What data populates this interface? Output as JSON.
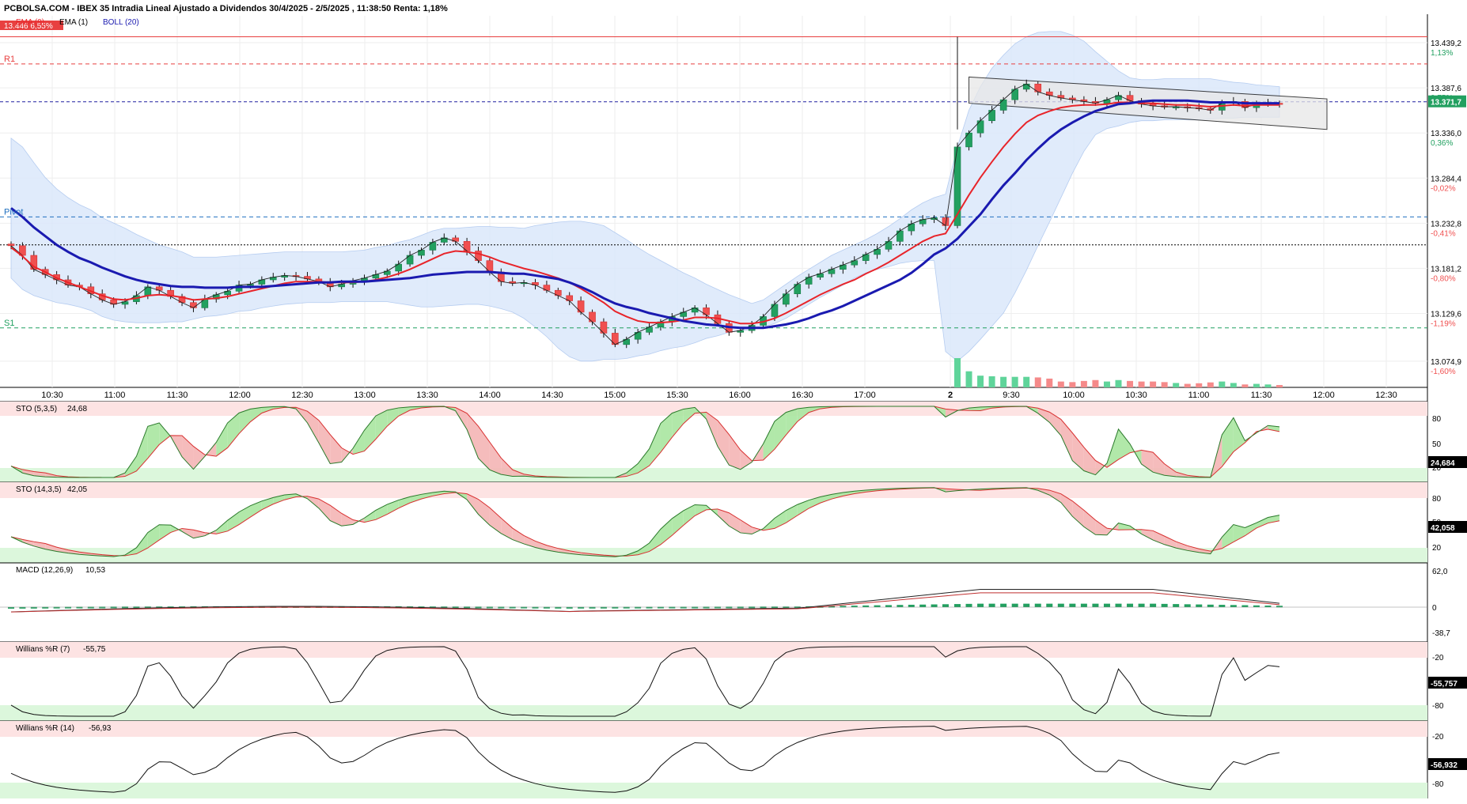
{
  "header": {
    "title": "PCBOLSA.COM - IBEX 35 Intradia Lineal Ajustado a Dividendos 30/4/2025 - 2/5/2025 , 11:38:50 Renta: 1,18%",
    "high_badge": "13.446  6,55%",
    "legend": [
      {
        "label": "EMA (9)",
        "color": "#e8242a"
      },
      {
        "label": "EMA (1)",
        "color": "#000000"
      },
      {
        "label": "BOLL (20)",
        "color": "#1a1ab0"
      }
    ]
  },
  "colors": {
    "up": "#22a060",
    "down": "#f05050",
    "ema9": "#e8242a",
    "ema20": "#1a1ab0",
    "boll": "#dbe8fb",
    "resistance": "#e84040",
    "pivot": "#2070c0",
    "support": "#20a060",
    "overbought": "#fde3e3",
    "oversold": "#dcf7dc"
  },
  "chart_data": [
    {
      "type": "candlestick",
      "title": "IBEX 35 Intradia",
      "x_ticks": [
        "10:30",
        "11:00",
        "11:30",
        "12:00",
        "12:30",
        "13:00",
        "13:30",
        "14:00",
        "14:30",
        "15:00",
        "15:30",
        "16:00",
        "16:30",
        "17:00",
        "2",
        "9:30",
        "10:00",
        "10:30",
        "11:00",
        "11:30",
        "12:00",
        "12:30"
      ],
      "ylim": [
        13045,
        13470
      ],
      "y_ticks": [
        {
          "value": 13439.2,
          "label": "13.439,2",
          "pct": "1,13%"
        },
        {
          "value": 13387.6,
          "label": "13.387,6",
          "pct": "0,75%"
        },
        {
          "value": 13336.0,
          "label": "13.336,0",
          "pct": "0,36%"
        },
        {
          "value": 13284.4,
          "label": "13.284,4",
          "pct": "-0,02%"
        },
        {
          "value": 13232.8,
          "label": "13.232,8",
          "pct": "-0,41%"
        },
        {
          "value": 13181.2,
          "label": "13.181,2",
          "pct": "-0,80%"
        },
        {
          "value": 13129.6,
          "label": "13.129,6",
          "pct": "-1,19%"
        },
        {
          "value": 13074.9,
          "label": "13.074,9",
          "pct": "-1,60%"
        }
      ],
      "last_price": {
        "value": 13371.7,
        "label": "13.371,7"
      },
      "levels": [
        {
          "name": "R1",
          "value": 13415
        },
        {
          "name": "Pivot",
          "value": 13240
        },
        {
          "name": "S1",
          "value": 13113
        },
        {
          "name": "prev_close",
          "value": 13208
        }
      ],
      "high_line": 13446,
      "closes": [
        13207,
        13196,
        13180,
        13174,
        13168,
        13162,
        13160,
        13152,
        13145,
        13140,
        13143,
        13150,
        13160,
        13156,
        13149,
        13142,
        13136,
        13146,
        13151,
        13155,
        13162,
        13163,
        13168,
        13171,
        13173,
        13172,
        13169,
        13166,
        13160,
        13163,
        13167,
        13170,
        13174,
        13178,
        13186,
        13196,
        13202,
        13211,
        13216,
        13212,
        13201,
        13190,
        13177,
        13166,
        13164,
        13165,
        13162,
        13156,
        13150,
        13144,
        13131,
        13120,
        13107,
        13094,
        13100,
        13108,
        13114,
        13120,
        13126,
        13131,
        13136,
        13128,
        13118,
        13108,
        13110,
        13116,
        13126,
        13140,
        13152,
        13163,
        13171,
        13175,
        13180,
        13185,
        13190,
        13197,
        13203,
        13212,
        13224,
        13232,
        13237,
        13239,
        13230,
        13320,
        13336,
        13350,
        13362,
        13374,
        13386,
        13392,
        13383,
        13379,
        13376,
        13374,
        13372,
        13370,
        13374,
        13379,
        13373,
        13369,
        13367,
        13366,
        13366,
        13365,
        13364,
        13362,
        13370,
        13372,
        13365,
        13369,
        13370,
        13369
      ],
      "ema9": [
        13205,
        13195,
        13183,
        13177,
        13170,
        13165,
        13160,
        13155,
        13150,
        13146,
        13145,
        13147,
        13150,
        13151,
        13150,
        13148,
        13145,
        13146,
        13147,
        13149,
        13152,
        13155,
        13158,
        13161,
        13164,
        13166,
        13166,
        13166,
        13165,
        13165,
        13165,
        13166,
        13168,
        13171,
        13175,
        13180,
        13186,
        13192,
        13198,
        13201,
        13200,
        13198,
        13194,
        13189,
        13185,
        13181,
        13178,
        13174,
        13170,
        13165,
        13158,
        13150,
        13142,
        13132,
        13126,
        13121,
        13119,
        13119,
        13120,
        13122,
        13125,
        13125,
        13124,
        13121,
        13118,
        13118,
        13120,
        13124,
        13130,
        13137,
        13144,
        13151,
        13157,
        13163,
        13168,
        13175,
        13181,
        13188,
        13196,
        13204,
        13212,
        13218,
        13221,
        13243,
        13265,
        13285,
        13303,
        13320,
        13335,
        13348,
        13356,
        13361,
        13365,
        13367,
        13368,
        13368,
        13369,
        13371,
        13371,
        13370,
        13370,
        13369,
        13368,
        13368,
        13367,
        13366,
        13367,
        13368,
        13367,
        13368,
        13368,
        13368
      ],
      "ema20": [
        13250,
        13240,
        13228,
        13218,
        13208,
        13200,
        13193,
        13188,
        13182,
        13177,
        13172,
        13168,
        13165,
        13163,
        13161,
        13160,
        13160,
        13159,
        13159,
        13159,
        13160,
        13160,
        13160,
        13161,
        13162,
        13163,
        13164,
        13165,
        13165,
        13166,
        13166,
        13166,
        13167,
        13168,
        13169,
        13170,
        13172,
        13174,
        13175,
        13176,
        13177,
        13177,
        13177,
        13176,
        13175,
        13175,
        13173,
        13171,
        13169,
        13165,
        13160,
        13154,
        13147,
        13141,
        13137,
        13134,
        13130,
        13127,
        13124,
        13121,
        13119,
        13117,
        13116,
        13114,
        13113,
        13113,
        13113,
        13115,
        13117,
        13120,
        13124,
        13129,
        13133,
        13138,
        13144,
        13150,
        13156,
        13162,
        13168,
        13176,
        13186,
        13197,
        13204,
        13215,
        13229,
        13243,
        13260,
        13276,
        13290,
        13305,
        13318,
        13330,
        13340,
        13348,
        13355,
        13361,
        13365,
        13369,
        13370,
        13372,
        13373,
        13373,
        13373,
        13373,
        13372,
        13371,
        13371,
        13371,
        13370,
        13370,
        13370,
        13370
      ],
      "boll_upper": [
        13330,
        13320,
        13302,
        13285,
        13272,
        13262,
        13254,
        13248,
        13239,
        13233,
        13227,
        13220,
        13214,
        13208,
        13204,
        13200,
        13194,
        13194,
        13194,
        13195,
        13196,
        13197,
        13198,
        13199,
        13200,
        13200,
        13200,
        13200,
        13200,
        13200,
        13201,
        13202,
        13205,
        13207,
        13211,
        13214,
        13219,
        13224,
        13227,
        13227,
        13228,
        13229,
        13229,
        13228,
        13228,
        13227,
        13230,
        13232,
        13234,
        13235,
        13235,
        13233,
        13230,
        13222,
        13214,
        13205,
        13197,
        13190,
        13183,
        13176,
        13170,
        13163,
        13157,
        13151,
        13146,
        13141,
        13145,
        13154,
        13163,
        13172,
        13180,
        13188,
        13196,
        13202,
        13208,
        13214,
        13221,
        13229,
        13238,
        13248,
        13256,
        13262,
        13266,
        13320,
        13362,
        13389,
        13410,
        13425,
        13438,
        13446,
        13451,
        13452,
        13452,
        13448,
        13441,
        13429,
        13418,
        13407,
        13399,
        13397,
        13397,
        13398,
        13398,
        13398,
        13398,
        13398,
        13396,
        13394,
        13393,
        13391,
        13390,
        13389
      ],
      "boll_lower": [
        13170,
        13157,
        13150,
        13146,
        13142,
        13140,
        13137,
        13133,
        13126,
        13122,
        13120,
        13119,
        13119,
        13119,
        13120,
        13120,
        13123,
        13126,
        13127,
        13129,
        13132,
        13133,
        13136,
        13138,
        13140,
        13141,
        13142,
        13142,
        13142,
        13143,
        13143,
        13143,
        13143,
        13143,
        13141,
        13139,
        13137,
        13137,
        13138,
        13139,
        13140,
        13140,
        13138,
        13135,
        13131,
        13124,
        13114,
        13103,
        13090,
        13080,
        13075,
        13075,
        13077,
        13077,
        13078,
        13081,
        13083,
        13087,
        13090,
        13092,
        13096,
        13101,
        13104,
        13108,
        13110,
        13111,
        13114,
        13118,
        13124,
        13132,
        13140,
        13148,
        13155,
        13162,
        13170,
        13176,
        13180,
        13183,
        13187,
        13189,
        13190,
        13190,
        13086,
        13075,
        13086,
        13100,
        13115,
        13130,
        13153,
        13179,
        13207,
        13234,
        13262,
        13290,
        13315,
        13334,
        13341,
        13344,
        13348,
        13350,
        13350,
        13351,
        13351,
        13351,
        13351,
        13352,
        13353,
        13353,
        13354,
        13354,
        13354,
        13354
      ],
      "volumes": [
        0,
        0,
        0,
        0,
        0,
        0,
        0,
        0,
        0,
        0,
        0,
        0,
        0,
        0,
        0,
        0,
        0,
        0,
        0,
        0,
        0,
        0,
        0,
        0,
        0,
        0,
        0,
        0,
        0,
        0,
        0,
        0,
        0,
        0,
        0,
        0,
        0,
        0,
        0,
        0,
        0,
        0,
        0,
        0,
        0,
        0,
        0,
        0,
        0,
        0,
        0,
        0,
        0,
        0,
        0,
        0,
        0,
        0,
        0,
        0,
        0,
        0,
        0,
        0,
        0,
        0,
        0,
        0,
        0,
        0,
        0,
        0,
        0,
        0,
        0,
        0,
        0,
        0,
        0,
        0,
        0,
        0,
        0,
        100,
        55,
        40,
        38,
        36,
        36,
        36,
        34,
        30,
        20,
        18,
        22,
        25,
        20,
        25,
        22,
        20,
        20,
        18,
        15,
        12,
        14,
        17,
        20,
        15,
        10,
        12,
        10,
        8
      ]
    },
    {
      "type": "line",
      "title": "STO (5,3,5)",
      "value_label": "24,68",
      "last_badge": "24,684",
      "y_ticks": [
        "80",
        "50",
        "20"
      ]
    },
    {
      "type": "line",
      "title": "STO (14,3,5)",
      "value_label": "42,05",
      "last_badge": "42,058",
      "y_ticks": [
        "80",
        "50",
        "20"
      ]
    },
    {
      "type": "line",
      "title": "MACD (12,26,9)",
      "value_label": "10,53",
      "y_ticks": [
        "62,0",
        "0",
        "-38,7"
      ],
      "ylim": [
        -38.7,
        62.0
      ]
    },
    {
      "type": "line",
      "title": "Willians %R (7)",
      "value_label": "-55,75",
      "last_badge": "-55,757",
      "y_ticks": [
        "-20",
        "-80"
      ]
    },
    {
      "type": "line",
      "title": "Willians %R (14)",
      "value_label": "-56,93",
      "last_badge": "-56,932",
      "y_ticks": [
        "-20",
        "-80"
      ]
    }
  ]
}
